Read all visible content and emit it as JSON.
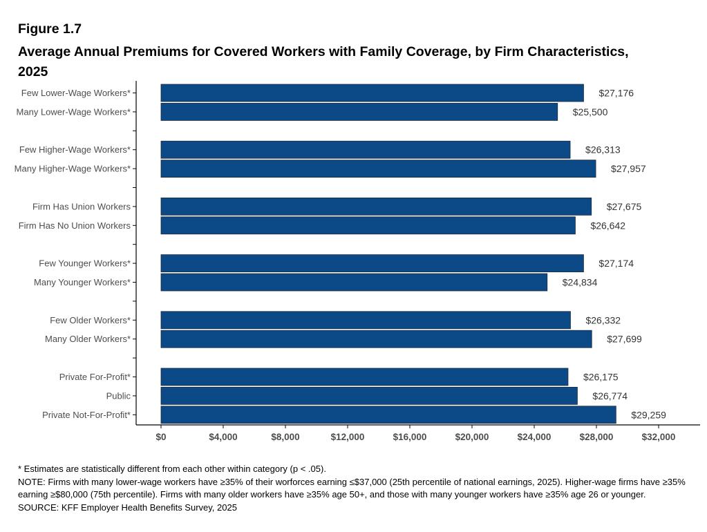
{
  "figure_label": "Figure 1.7",
  "title": "Average Annual Premiums for Covered Workers with Family Coverage, by Firm Characteristics, 2025",
  "colors": {
    "bar": "#0c4a87",
    "bar_edge": "#1b2a3a",
    "axis": "#000000",
    "tick_text": "#4d4d4d",
    "value_text": "#333333"
  },
  "chart_data": {
    "type": "bar",
    "orientation": "horizontal",
    "xlim": [
      0,
      32000
    ],
    "x_ticks": [
      {
        "value": 0,
        "label": "$0"
      },
      {
        "value": 4000,
        "label": "$4,000"
      },
      {
        "value": 8000,
        "label": "$8,000"
      },
      {
        "value": 12000,
        "label": "$12,000"
      },
      {
        "value": 16000,
        "label": "$16,000"
      },
      {
        "value": 20000,
        "label": "$20,000"
      },
      {
        "value": 24000,
        "label": "$24,000"
      },
      {
        "value": 28000,
        "label": "$28,000"
      },
      {
        "value": 32000,
        "label": "$32,000"
      }
    ],
    "grid": false,
    "groups": [
      {
        "bars": [
          {
            "category": "Few Lower-Wage Workers*",
            "value": 27176,
            "label": "$27,176"
          },
          {
            "category": "Many Lower-Wage Workers*",
            "value": 25500,
            "label": "$25,500"
          }
        ]
      },
      {
        "bars": [
          {
            "category": "Few Higher-Wage Workers*",
            "value": 26313,
            "label": "$26,313"
          },
          {
            "category": "Many Higher-Wage Workers*",
            "value": 27957,
            "label": "$27,957"
          }
        ]
      },
      {
        "bars": [
          {
            "category": "Firm Has Union Workers",
            "value": 27675,
            "label": "$27,675"
          },
          {
            "category": "Firm Has No Union Workers",
            "value": 26642,
            "label": "$26,642"
          }
        ]
      },
      {
        "bars": [
          {
            "category": "Few Younger Workers*",
            "value": 27174,
            "label": "$27,174"
          },
          {
            "category": "Many Younger Workers*",
            "value": 24834,
            "label": "$24,834"
          }
        ]
      },
      {
        "bars": [
          {
            "category": "Few Older Workers*",
            "value": 26332,
            "label": "$26,332"
          },
          {
            "category": "Many Older Workers*",
            "value": 27699,
            "label": "$27,699"
          }
        ]
      },
      {
        "bars": [
          {
            "category": "Private For-Profit*",
            "value": 26175,
            "label": "$26,175"
          },
          {
            "category": "Public",
            "value": 26774,
            "label": "$26,774"
          },
          {
            "category": "Private Not-For-Profit*",
            "value": 29259,
            "label": "$29,259"
          }
        ]
      }
    ]
  },
  "footnotes": {
    "significance": "* Estimates are statistically different from each other within category (p < .05).",
    "note": "NOTE: Firms with many lower-wage workers have ≥35% of their worforces earning ≤$37,000 (25th percentile of national earnings, 2025). Higher-wage firms have ≥35% earning ≥$80,000 (75th percentile). Firms with many older workers have ≥35% age 50+, and those with many younger workers have ≥35% age 26 or younger.",
    "source": "SOURCE: KFF Employer Health Benefits Survey, 2025"
  }
}
